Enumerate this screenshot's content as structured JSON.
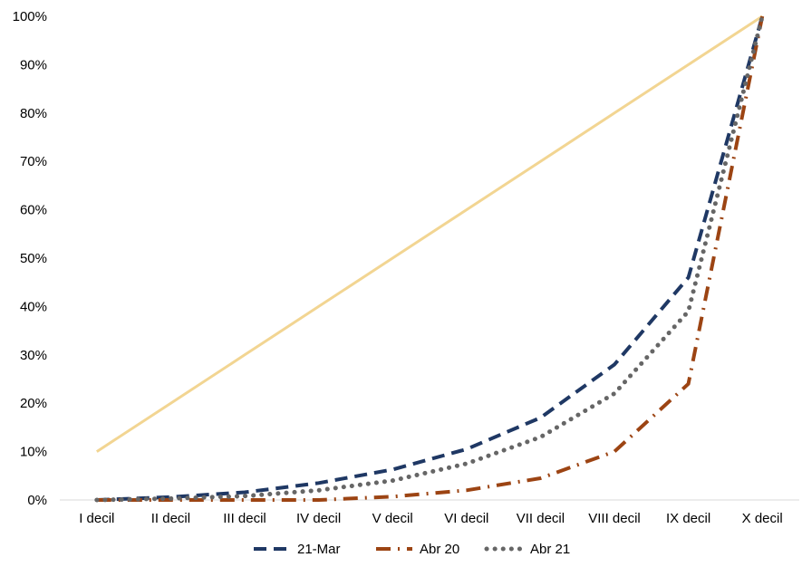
{
  "chart_data": {
    "type": "line",
    "title": "",
    "xlabel": "",
    "ylabel": "",
    "categories": [
      "I decil",
      "II decil",
      "III decil",
      "IV decil",
      "V decil",
      "VI decil",
      "VII decil",
      "VIII decil",
      "IX decil",
      "X decil"
    ],
    "ylim": [
      0,
      100
    ],
    "yticks": [
      "0%",
      "10%",
      "20%",
      "30%",
      "40%",
      "50%",
      "60%",
      "70%",
      "80%",
      "90%",
      "100%"
    ],
    "grid": false,
    "legend_position": "bottom",
    "series": [
      {
        "name": "",
        "style": "solid",
        "color": "#F2D592",
        "values": [
          10,
          20,
          30,
          40,
          50,
          60,
          70,
          80,
          90,
          100
        ],
        "show_in_legend": false
      },
      {
        "name": "21-Mar",
        "style": "dashed",
        "color": "#1F3864",
        "values": [
          0,
          0.6,
          1.6,
          3.5,
          6.3,
          10.5,
          17,
          28,
          46,
          100
        ],
        "show_in_legend": true
      },
      {
        "name": "Abr 20",
        "style": "dashdot",
        "color": "#9C4413",
        "values": [
          0,
          0,
          0,
          0,
          0.7,
          2,
          4.5,
          10,
          24,
          100
        ],
        "show_in_legend": true
      },
      {
        "name": "Abr 21",
        "style": "dotted",
        "color": "#666666",
        "values": [
          0,
          0.3,
          0.8,
          2,
          4,
          7.5,
          13,
          22,
          39,
          100
        ],
        "show_in_legend": true
      }
    ]
  }
}
